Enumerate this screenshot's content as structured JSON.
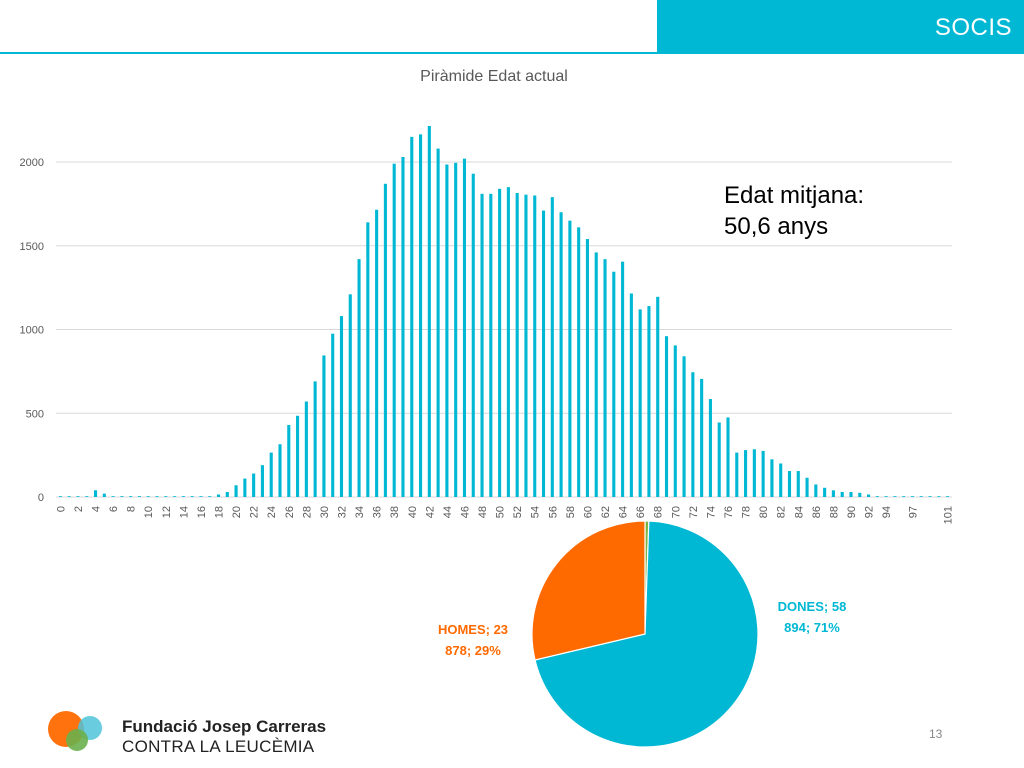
{
  "header": {
    "title": "SOCIS"
  },
  "summary": {
    "line1": "Edat mitjana:",
    "line2": "50,6 anys"
  },
  "footer": {
    "logo_line1": "Fundació Josep Carreras",
    "logo_line2": "CONTRA LA LEUCÈMIA",
    "page_number": "13"
  },
  "colors": {
    "accent": "#00b8d4",
    "homes": "#ff6a00",
    "other": "#7cb342",
    "grid": "#d9d9d9"
  },
  "chart_data": [
    {
      "type": "bar",
      "title": "Piràmide Edat actual",
      "xlabel": "",
      "ylabel": "",
      "ylim": [
        0,
        2300
      ],
      "yticks": [
        0,
        500,
        1000,
        1500,
        2000
      ],
      "grid": true,
      "color": "#00b8d4",
      "categories": [
        "0",
        "1",
        "2",
        "3",
        "4",
        "5",
        "6",
        "7",
        "8",
        "9",
        "10",
        "11",
        "12",
        "13",
        "14",
        "15",
        "16",
        "17",
        "18",
        "19",
        "20",
        "21",
        "22",
        "23",
        "24",
        "25",
        "26",
        "27",
        "28",
        "29",
        "30",
        "31",
        "32",
        "33",
        "34",
        "35",
        "36",
        "37",
        "38",
        "39",
        "40",
        "41",
        "42",
        "43",
        "44",
        "45",
        "46",
        "47",
        "48",
        "49",
        "50",
        "51",
        "52",
        "53",
        "54",
        "55",
        "56",
        "57",
        "58",
        "59",
        "60",
        "61",
        "62",
        "63",
        "64",
        "65",
        "66",
        "67",
        "68",
        "69",
        "70",
        "71",
        "72",
        "73",
        "74",
        "75",
        "76",
        "77",
        "78",
        "79",
        "80",
        "81",
        "82",
        "83",
        "84",
        "85",
        "86",
        "87",
        "88",
        "89",
        "90",
        "91",
        "92",
        "93",
        "94",
        "95",
        "96",
        "97",
        "98",
        "99",
        "100",
        "101"
      ],
      "tick_labels": [
        "0",
        "2",
        "4",
        "6",
        "8",
        "10",
        "12",
        "14",
        "16",
        "18",
        "20",
        "22",
        "24",
        "26",
        "28",
        "30",
        "32",
        "34",
        "36",
        "38",
        "40",
        "42",
        "44",
        "46",
        "48",
        "50",
        "52",
        "54",
        "56",
        "58",
        "60",
        "62",
        "64",
        "66",
        "68",
        "70",
        "72",
        "74",
        "76",
        "78",
        "80",
        "82",
        "84",
        "86",
        "88",
        "90",
        "92",
        "94",
        "97",
        "101"
      ],
      "values": [
        3,
        3,
        3,
        3,
        40,
        20,
        3,
        5,
        5,
        5,
        3,
        3,
        3,
        3,
        5,
        5,
        3,
        3,
        15,
        30,
        70,
        110,
        140,
        190,
        265,
        315,
        430,
        485,
        570,
        690,
        845,
        975,
        1080,
        1210,
        1420,
        1640,
        1715,
        1870,
        1990,
        2030,
        2150,
        2165,
        2215,
        2080,
        1985,
        1995,
        2020,
        1930,
        1810,
        1810,
        1840,
        1850,
        1815,
        1805,
        1800,
        1710,
        1790,
        1700,
        1650,
        1610,
        1540,
        1460,
        1420,
        1345,
        1405,
        1215,
        1120,
        1140,
        1195,
        960,
        905,
        840,
        745,
        705,
        585,
        445,
        475,
        265,
        280,
        285,
        275,
        225,
        200,
        155,
        155,
        115,
        75,
        55,
        40,
        30,
        30,
        25,
        15,
        5,
        3,
        3,
        3,
        2,
        2,
        2,
        2,
        2
      ]
    },
    {
      "type": "pie",
      "slices": [
        {
          "name": "DONES",
          "value": 58894,
          "percent": 71,
          "label": "DONES; 58 894; 71%",
          "color": "#00b8d4"
        },
        {
          "name": "HOMES",
          "value": 23878,
          "percent": 29,
          "label": "HOMES; 23 878; 29%",
          "color": "#ff6a00"
        },
        {
          "name": "",
          "value": 450,
          "percent": 0.5,
          "label": "",
          "color": "#7cb342"
        }
      ]
    }
  ]
}
